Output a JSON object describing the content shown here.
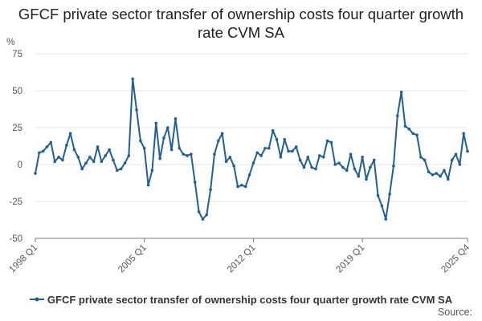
{
  "chart_data": {
    "type": "line",
    "title": "GFCF private sector transfer of ownership costs four quarter growth rate CVM SA",
    "ylabel": "%",
    "xlabel": "",
    "ylim": [
      -50,
      75
    ],
    "yticks": [
      -50,
      -25,
      0,
      25,
      50,
      75
    ],
    "grid": true,
    "legend_position": "bottom",
    "x_range": [
      "1998 Q1",
      "2025 Q4"
    ],
    "x_tick_labels": [
      "1998 Q1",
      "2005 Q1",
      "2012 Q1",
      "2019 Q1",
      "2025 Q4"
    ],
    "x_tick_indices": [
      0,
      28,
      56,
      84,
      111
    ],
    "series": [
      {
        "name": "GFCF private sector transfer of ownership costs four quarter growth rate CVM SA",
        "color": "#206095",
        "values": [
          -6,
          8,
          9,
          12,
          15,
          2,
          5,
          3,
          13,
          21,
          10,
          5,
          -3,
          1,
          5,
          2,
          12,
          2,
          6,
          10,
          3,
          -4,
          -3,
          1,
          6,
          58,
          37,
          16,
          11,
          -14,
          -4,
          28,
          4,
          18,
          25,
          10,
          31,
          11,
          7,
          6,
          7,
          -12,
          -32,
          -37,
          -34,
          -17,
          7,
          16,
          21,
          2,
          5,
          -1,
          -15,
          -14,
          -15,
          -7,
          1,
          8,
          6,
          11,
          11,
          23,
          17,
          5,
          17,
          9,
          9,
          12,
          3,
          -2,
          5,
          -2,
          -3,
          6,
          5,
          16,
          15,
          0,
          1,
          -2,
          -4,
          7,
          -3,
          -8,
          5,
          -10,
          -2,
          3,
          -21,
          -28,
          -37,
          -20,
          -1,
          33,
          49,
          26,
          24,
          21,
          20,
          5,
          3,
          -5,
          -7,
          -6,
          -8,
          -4,
          -10,
          3,
          7,
          0,
          21,
          9
        ]
      }
    ]
  },
  "legend": {
    "label": "GFCF private sector transfer of ownership costs four quarter growth rate CVM SA"
  },
  "source": {
    "label": "Source:"
  }
}
